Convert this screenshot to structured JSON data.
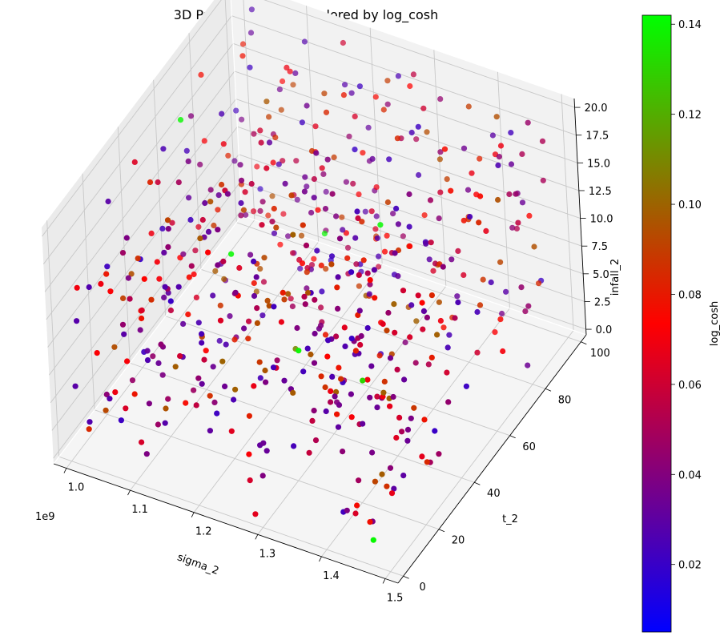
{
  "chart_data": {
    "type": "scatter",
    "title": "3D Parameter Space Colored by log_cosh",
    "xlabel": "sigma_2",
    "ylabel": "t_2",
    "zlabel": "infall_2",
    "x_offset_label": "1e9",
    "xlim": [
      0.98,
      1.52
    ],
    "ylim": [
      -3,
      103
    ],
    "zlim": [
      -0.5,
      20.8
    ],
    "x_ticks": [
      "1.0",
      "1.1",
      "1.2",
      "1.3",
      "1.4",
      "1.5"
    ],
    "y_ticks": [
      "0",
      "20",
      "40",
      "60",
      "80",
      "100"
    ],
    "z_ticks": [
      "0.0",
      "2.5",
      "5.0",
      "7.5",
      "10.0",
      "12.5",
      "15.0",
      "17.5",
      "20.0"
    ],
    "colorbar": {
      "label": "log_cosh",
      "min": 0.005,
      "max": 0.142,
      "ticks": [
        "0.02",
        "0.04",
        "0.06",
        "0.08",
        "0.10",
        "0.12",
        "0.14"
      ],
      "colormap": [
        "#0000ff",
        "#800080",
        "#ff0000",
        "#808000",
        "#00ff00"
      ]
    },
    "grid": true,
    "n_points": 600,
    "points_note": "approximately 600 points, with sigma_2 spread across the 1.0e9–1.5e9 range, t_2 across 0–100, infall_2 across 0–20, colored by log_cosh (mostly 0.02–0.09, a few near 0.14)",
    "points_sample": [
      {
        "sigma_2": 1.46,
        "t_2": 5,
        "infall_2": 0.5,
        "log_cosh": 0.14
      },
      {
        "sigma_2": 1.02,
        "t_2": 60,
        "infall_2": 18,
        "log_cosh": 0.14
      },
      {
        "sigma_2": 1.12,
        "t_2": 50,
        "infall_2": 10,
        "log_cosh": 0.14
      },
      {
        "sigma_2": 1.25,
        "t_2": 40,
        "infall_2": 6,
        "log_cosh": 0.14
      },
      {
        "sigma_2": 1.3,
        "t_2": 70,
        "infall_2": 12,
        "log_cosh": 0.14
      },
      {
        "sigma_2": 1.15,
        "t_2": 90,
        "infall_2": 4,
        "log_cosh": 0.14
      },
      {
        "sigma_2": 1.38,
        "t_2": 30,
        "infall_2": 8,
        "log_cosh": 0.13
      },
      {
        "sigma_2": 1.2,
        "t_2": 55,
        "infall_2": 2,
        "log_cosh": 0.11
      }
    ]
  }
}
